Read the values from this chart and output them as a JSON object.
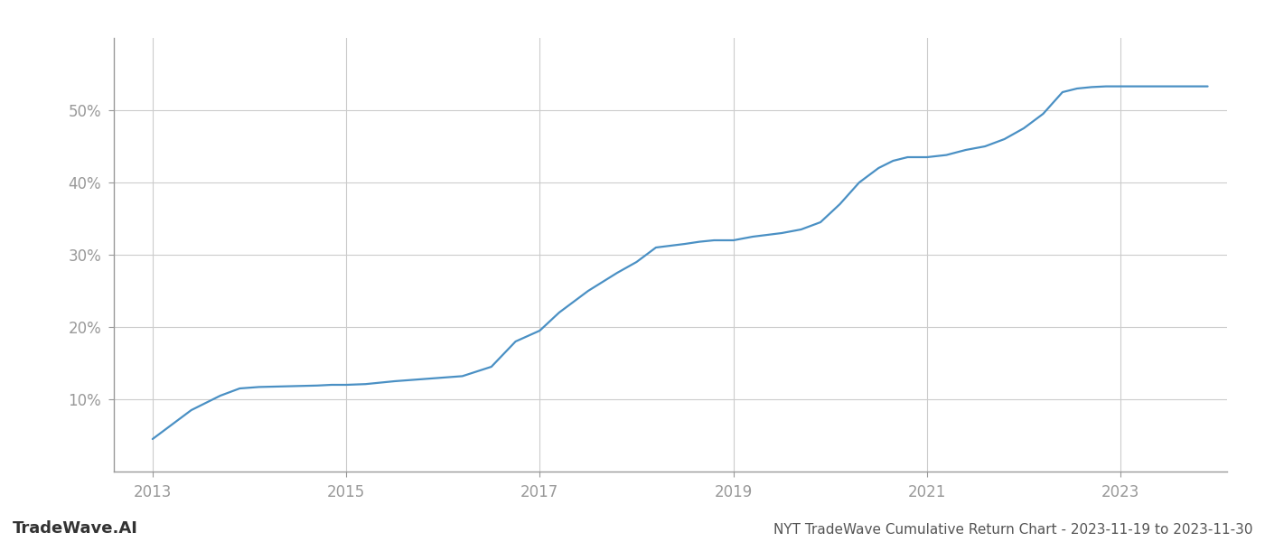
{
  "title": "NYT TradeWave Cumulative Return Chart - 2023-11-19 to 2023-11-30",
  "watermark": "TradeWave.AI",
  "line_color": "#4a90c4",
  "background_color": "#ffffff",
  "grid_color": "#cccccc",
  "x_values": [
    2013.0,
    2013.15,
    2013.4,
    2013.7,
    2013.9,
    2014.1,
    2014.4,
    2014.7,
    2014.85,
    2015.0,
    2015.2,
    2015.5,
    2015.8,
    2016.0,
    2016.2,
    2016.5,
    2016.75,
    2017.0,
    2017.2,
    2017.5,
    2017.8,
    2018.0,
    2018.2,
    2018.5,
    2018.65,
    2018.8,
    2019.0,
    2019.2,
    2019.5,
    2019.7,
    2019.9,
    2020.1,
    2020.3,
    2020.5,
    2020.65,
    2020.8,
    2021.0,
    2021.2,
    2021.4,
    2021.6,
    2021.8,
    2022.0,
    2022.2,
    2022.4,
    2022.55,
    2022.7,
    2022.85,
    2023.0,
    2023.5,
    2023.9
  ],
  "y_values": [
    4.5,
    6.0,
    8.5,
    10.5,
    11.5,
    11.7,
    11.8,
    11.9,
    12.0,
    12.0,
    12.1,
    12.5,
    12.8,
    13.0,
    13.2,
    14.5,
    18.0,
    19.5,
    22.0,
    25.0,
    27.5,
    29.0,
    31.0,
    31.5,
    31.8,
    32.0,
    32.0,
    32.5,
    33.0,
    33.5,
    34.5,
    37.0,
    40.0,
    42.0,
    43.0,
    43.5,
    43.5,
    43.8,
    44.5,
    45.0,
    46.0,
    47.5,
    49.5,
    52.5,
    53.0,
    53.2,
    53.3,
    53.3,
    53.3,
    53.3
  ],
  "xlim": [
    2012.6,
    2024.1
  ],
  "ylim": [
    0,
    60
  ],
  "yticks": [
    10,
    20,
    30,
    40,
    50
  ],
  "xticks": [
    2013,
    2015,
    2017,
    2019,
    2021,
    2023
  ],
  "line_width": 1.6,
  "title_fontsize": 11,
  "tick_fontsize": 12,
  "watermark_fontsize": 13,
  "spine_color": "#999999",
  "tick_color": "#999999",
  "label_color": "#999999"
}
